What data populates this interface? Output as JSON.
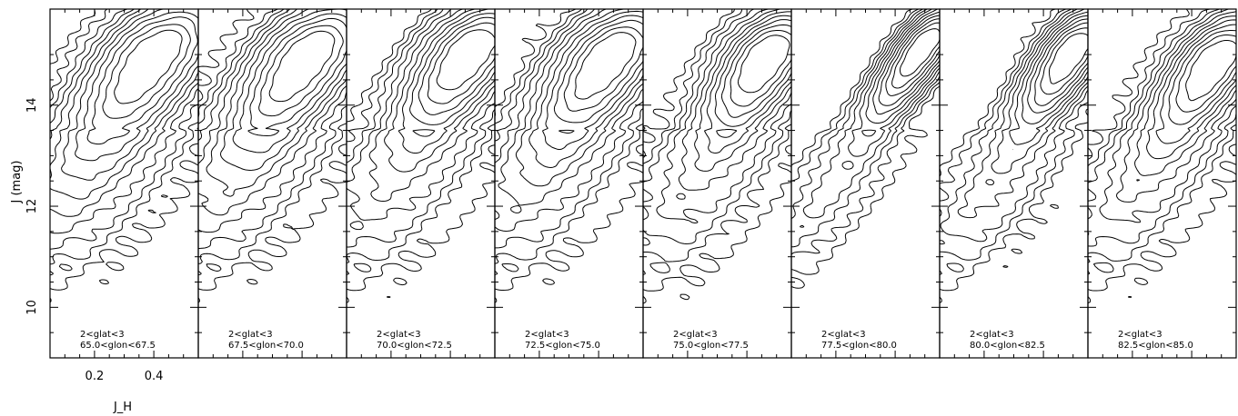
{
  "chart_data": {
    "type": "contour",
    "xlabel": "J_H",
    "ylabel": "J (mag)",
    "xlim": [
      0.05,
      0.55
    ],
    "ylim": [
      9.0,
      15.9
    ],
    "x_ticks": [
      0.2,
      0.4
    ],
    "y_ticks": [
      10,
      12,
      14
    ],
    "panels": [
      {
        "label_line1": "2<glat<3",
        "label_line2": "65.0<glon<67.5",
        "glon_min": 65.0,
        "glon_max": 67.5,
        "ridge_slope": 10,
        "peak_x": 0.4,
        "peak_y": 15.0,
        "spread": 1.0,
        "width": 0.12
      },
      {
        "label_line1": "2<glat<3",
        "label_line2": "67.5<glon<70.0",
        "glon_min": 67.5,
        "glon_max": 70.0,
        "ridge_slope": 10,
        "peak_x": 0.42,
        "peak_y": 15.0,
        "spread": 0.95,
        "width": 0.115
      },
      {
        "label_line1": "2<glat<3",
        "label_line2": "70.0<glon<72.5",
        "glon_min": 70.0,
        "glon_max": 72.5,
        "ridge_slope": 10,
        "peak_x": 0.47,
        "peak_y": 15.1,
        "spread": 0.85,
        "width": 0.105
      },
      {
        "label_line1": "2<glat<3",
        "label_line2": "72.5<glon<75.0",
        "glon_min": 72.5,
        "glon_max": 75.0,
        "ridge_slope": 10,
        "peak_x": 0.44,
        "peak_y": 15.0,
        "spread": 0.9,
        "width": 0.11
      },
      {
        "label_line1": "2<glat<3",
        "label_line2": "75.0<glon<77.5",
        "glon_min": 75.0,
        "glon_max": 77.5,
        "ridge_slope": 11,
        "peak_x": 0.47,
        "peak_y": 15.0,
        "spread": 0.8,
        "width": 0.095
      },
      {
        "label_line1": "2<glat<3",
        "label_line2": "77.5<glon<80.0",
        "glon_min": 77.5,
        "glon_max": 80.0,
        "ridge_slope": 9,
        "peak_x": 0.5,
        "peak_y": 15.2,
        "spread": 0.7,
        "width": 0.06
      },
      {
        "label_line1": "2<glat<3",
        "label_line2": "80.0<glon<82.5",
        "glon_min": 80.0,
        "glon_max": 82.5,
        "ridge_slope": 10,
        "peak_x": 0.5,
        "peak_y": 15.1,
        "spread": 0.72,
        "width": 0.07
      },
      {
        "label_line1": "2<glat<3",
        "label_line2": "82.5<glon<85.0",
        "glon_min": 82.5,
        "glon_max": 85.0,
        "ridge_slope": 10,
        "peak_x": 0.48,
        "peak_y": 14.9,
        "spread": 0.82,
        "width": 0.09
      }
    ],
    "contour_levels": [
      0.035,
      0.07,
      0.11,
      0.16,
      0.22,
      0.29,
      0.37,
      0.46,
      0.56,
      0.67,
      0.79
    ],
    "grid": false,
    "legend": "none"
  }
}
